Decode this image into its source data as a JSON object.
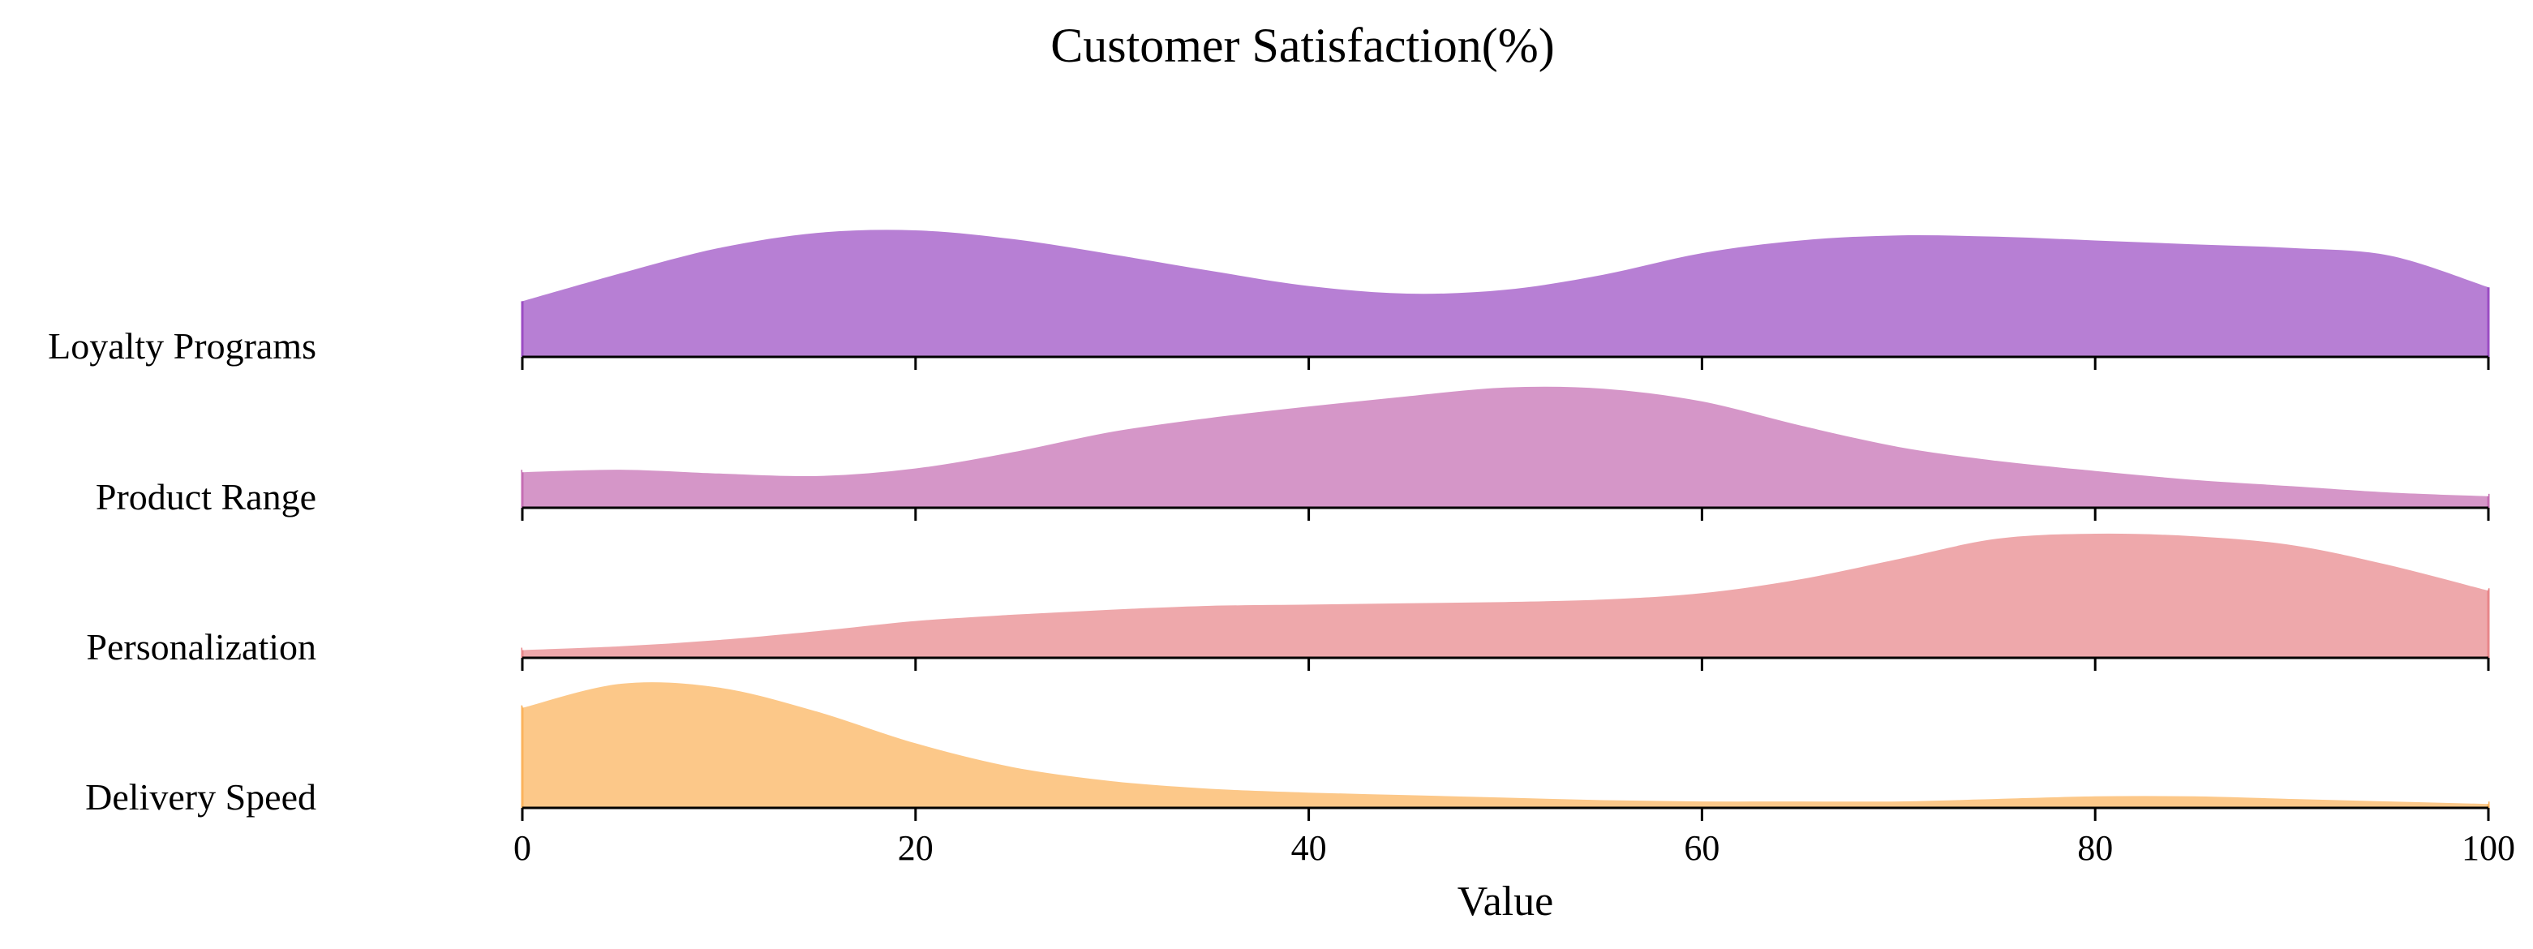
{
  "chart_data": {
    "type": "ridgeline",
    "title": "Customer Satisfaction(%)",
    "xlabel": "Value",
    "ylabel": "",
    "xlim": [
      0,
      100
    ],
    "xticks": [
      0,
      20,
      40,
      60,
      80,
      100
    ],
    "grid": false,
    "legend": "none",
    "x": [
      0,
      5,
      10,
      15,
      20,
      25,
      30,
      35,
      40,
      45,
      50,
      55,
      60,
      65,
      70,
      75,
      80,
      85,
      90,
      95,
      100
    ],
    "series": [
      {
        "name": "Loyalty Programs",
        "color": "#9b4dc4",
        "density": [
          0.44,
          0.66,
          0.86,
          0.98,
          1.0,
          0.93,
          0.81,
          0.68,
          0.56,
          0.5,
          0.53,
          0.65,
          0.82,
          0.92,
          0.96,
          0.95,
          0.92,
          0.89,
          0.86,
          0.8,
          0.55
        ]
      },
      {
        "name": "Product Range",
        "color": "#c56db3",
        "density": [
          0.3,
          0.32,
          0.29,
          0.27,
          0.33,
          0.46,
          0.62,
          0.73,
          0.82,
          0.9,
          0.97,
          0.96,
          0.86,
          0.67,
          0.5,
          0.39,
          0.31,
          0.24,
          0.19,
          0.14,
          0.11
        ]
      },
      {
        "name": "Personalization",
        "color": "#e8868a",
        "density": [
          0.08,
          0.11,
          0.16,
          0.23,
          0.31,
          0.36,
          0.4,
          0.43,
          0.44,
          0.45,
          0.46,
          0.48,
          0.53,
          0.64,
          0.8,
          0.96,
          1.0,
          0.98,
          0.91,
          0.75,
          0.55
        ]
      },
      {
        "name": "Delivery Speed",
        "color": "#fbb35c",
        "density": [
          0.81,
          1.0,
          0.97,
          0.78,
          0.53,
          0.34,
          0.23,
          0.17,
          0.14,
          0.12,
          0.1,
          0.08,
          0.07,
          0.07,
          0.07,
          0.09,
          0.11,
          0.11,
          0.09,
          0.07,
          0.05
        ]
      }
    ]
  }
}
